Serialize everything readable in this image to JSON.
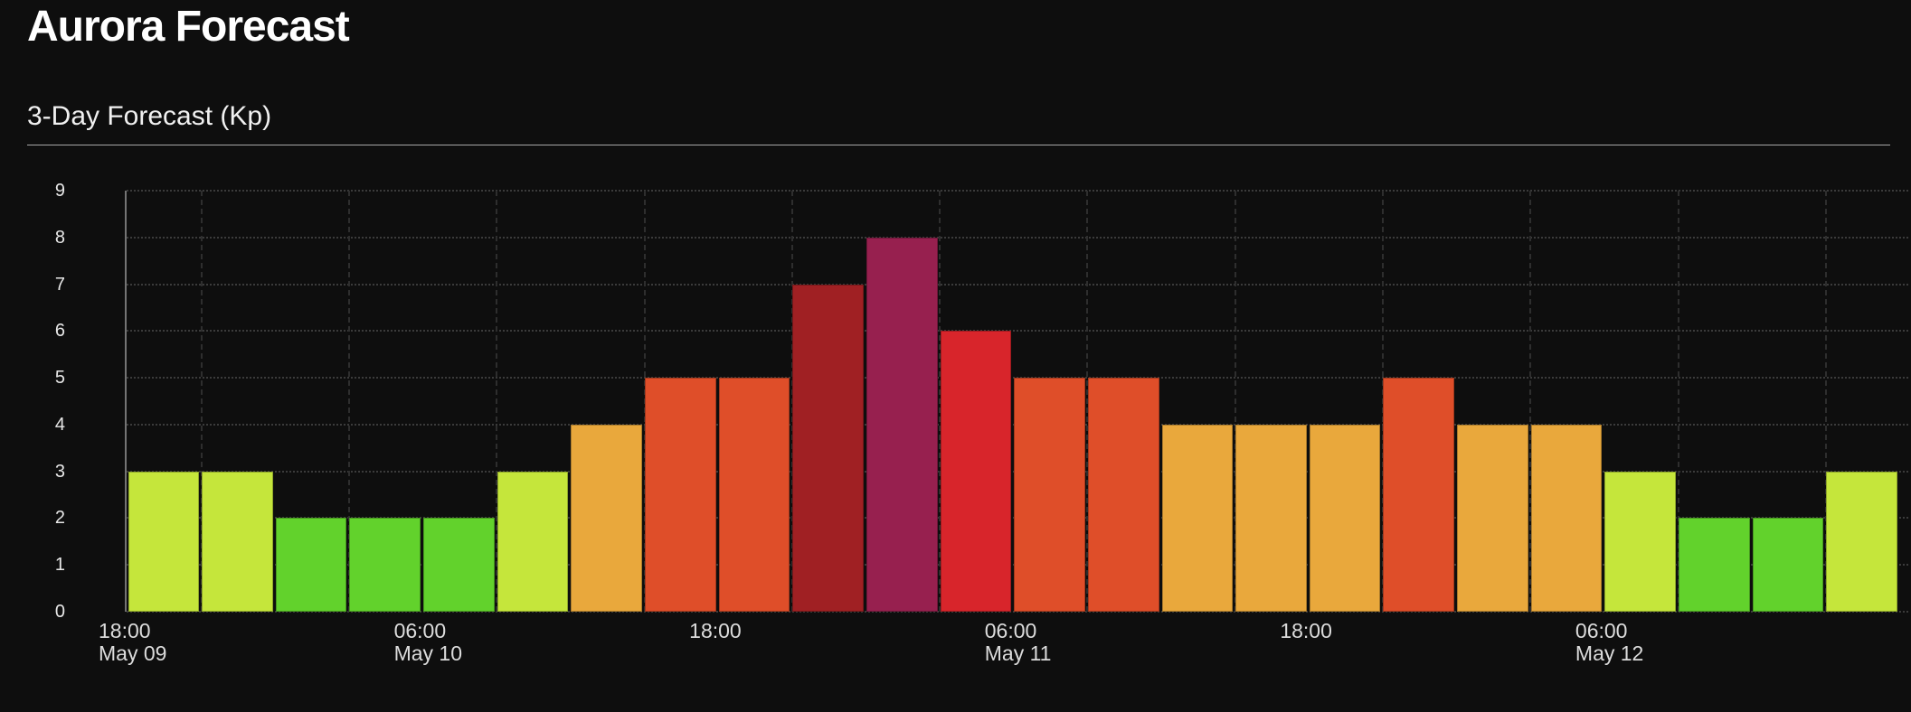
{
  "header": {
    "title": "Aurora Forecast",
    "subtitle": "3-Day Forecast (Kp)"
  },
  "chart_data": {
    "type": "bar",
    "title": "3-Day Forecast (Kp)",
    "ylabel": "Kp",
    "ylim": [
      0,
      9
    ],
    "y_ticks": [
      0,
      1,
      2,
      3,
      4,
      5,
      6,
      7,
      8,
      9
    ],
    "grid": "dotted",
    "legend": "none",
    "interval_hours": 3,
    "x_start": "May 09 18:00",
    "values": [
      3,
      3,
      2,
      2,
      2,
      3,
      4,
      5,
      5,
      7,
      8,
      6,
      5,
      5,
      4,
      4,
      4,
      5,
      4,
      4,
      3,
      2,
      2,
      3
    ],
    "kp_colors": {
      "2": "#62d22c",
      "3": "#c5e63b",
      "4": "#e9a83c",
      "5": "#df4e29",
      "6": "#d8252b",
      "7": "#a02023",
      "8": "#97204f"
    },
    "x_ticks": [
      {
        "slot": 0,
        "time": "18:00",
        "date": "May 09"
      },
      {
        "slot": 4,
        "time": "06:00",
        "date": "May 10"
      },
      {
        "slot": 8,
        "time": "18:00",
        "date": ""
      },
      {
        "slot": 12,
        "time": "06:00",
        "date": "May 11"
      },
      {
        "slot": 16,
        "time": "18:00",
        "date": ""
      },
      {
        "slot": 20,
        "time": "06:00",
        "date": "May 12"
      }
    ]
  }
}
